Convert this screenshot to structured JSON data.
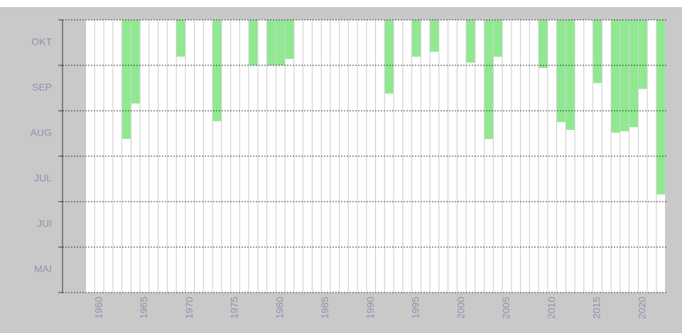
{
  "chart_data": {
    "type": "bar",
    "x": [
      1959,
      1960,
      1961,
      1962,
      1963,
      1964,
      1965,
      1966,
      1967,
      1968,
      1969,
      1970,
      1971,
      1972,
      1973,
      1974,
      1975,
      1976,
      1977,
      1978,
      1979,
      1980,
      1981,
      1982,
      1983,
      1984,
      1985,
      1986,
      1987,
      1988,
      1989,
      1990,
      1991,
      1992,
      1993,
      1994,
      1995,
      1996,
      1997,
      1998,
      1999,
      2000,
      2001,
      2002,
      2003,
      2004,
      2005,
      2006,
      2007,
      2008,
      2009,
      2010,
      2011,
      2012,
      2013,
      2014,
      2015,
      2016,
      2017,
      2018,
      2019,
      2020,
      2021,
      2022
    ],
    "values": [
      null,
      null,
      null,
      null,
      8.38,
      9.16,
      null,
      null,
      null,
      null,
      10.19,
      null,
      null,
      null,
      8.77,
      null,
      null,
      null,
      10.0,
      null,
      10.0,
      10.0,
      10.14,
      null,
      null,
      null,
      null,
      null,
      null,
      null,
      null,
      null,
      null,
      9.38,
      null,
      null,
      10.19,
      null,
      10.3,
      null,
      null,
      null,
      10.06,
      null,
      8.38,
      10.19,
      null,
      null,
      null,
      null,
      9.94,
      null,
      8.75,
      8.58,
      null,
      null,
      9.61,
      null,
      8.52,
      8.55,
      8.64,
      9.48,
      null,
      7.16
    ],
    "color": "#90e890",
    "xlim": [
      1957,
      2023
    ],
    "xticks": [
      1960,
      1965,
      1970,
      1975,
      1980,
      1985,
      1990,
      1995,
      2000,
      2005,
      2010,
      2015,
      2020
    ],
    "ylim": [
      5,
      11
    ],
    "yticks": [
      5,
      6,
      7,
      8,
      9,
      10,
      11
    ],
    "y_categories": [
      "MAI",
      "JUI",
      "JUL",
      "AUG",
      "SEP",
      "OKT"
    ],
    "grid": true
  }
}
